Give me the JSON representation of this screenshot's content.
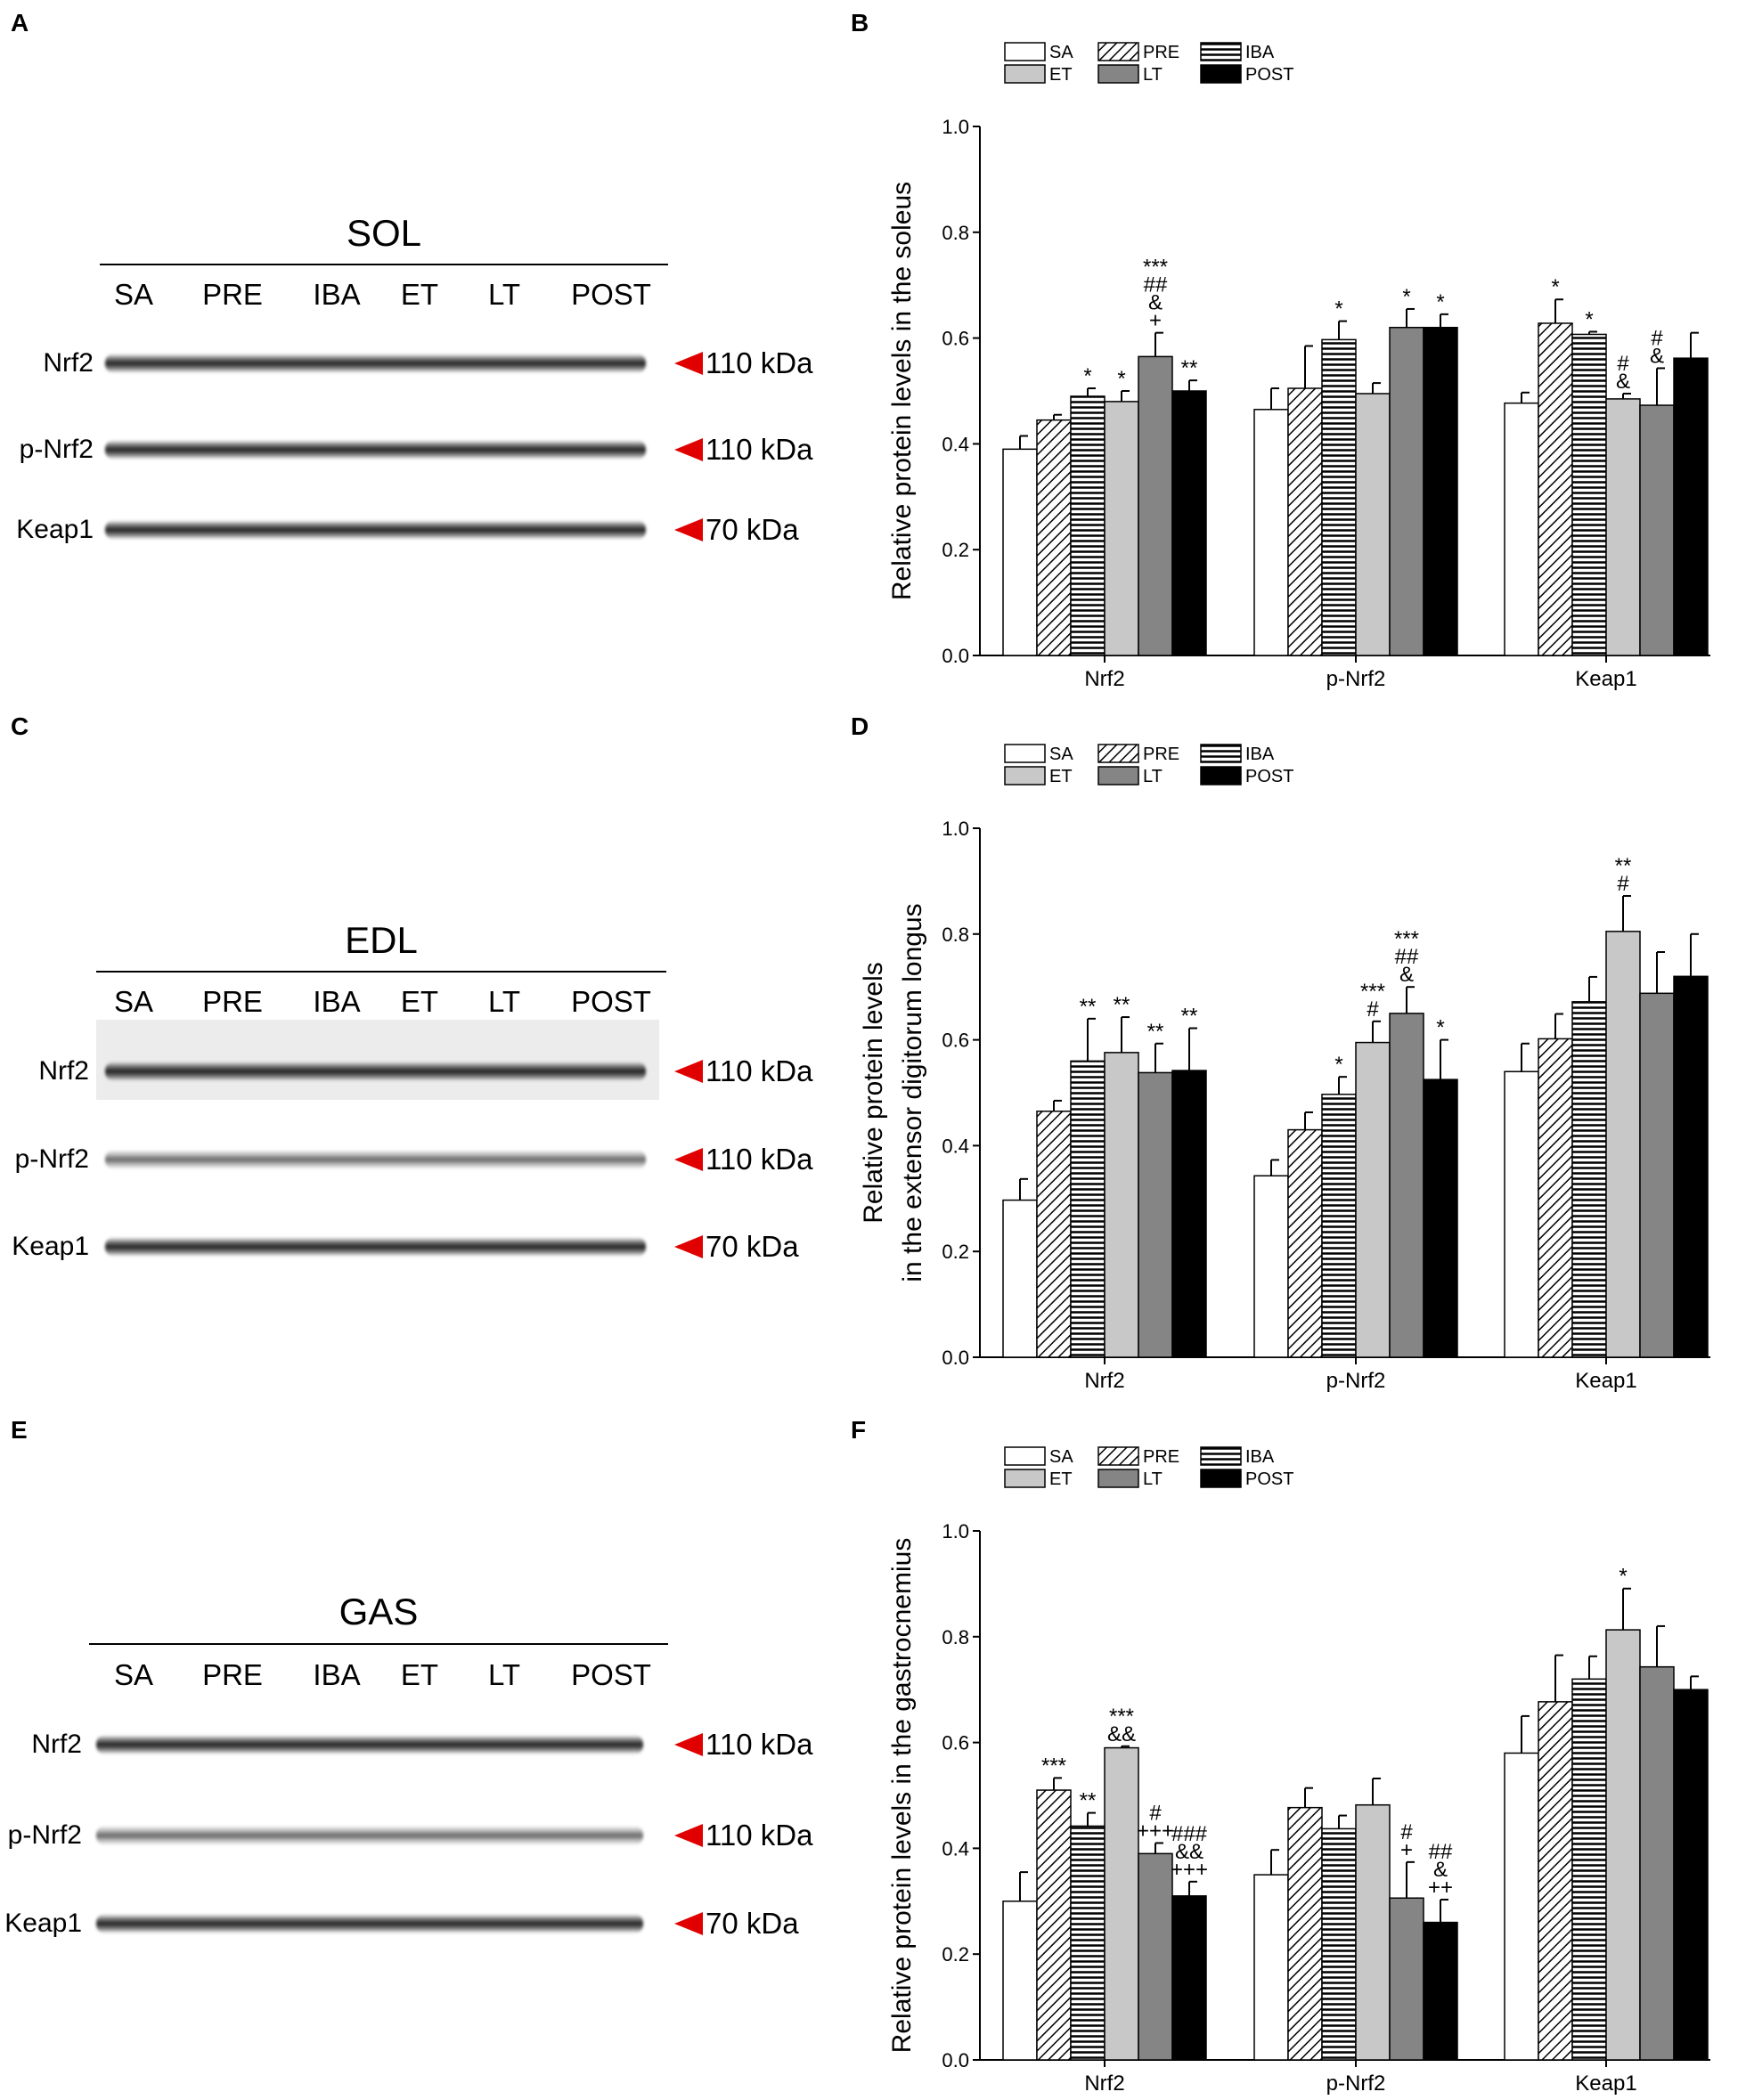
{
  "panels": {
    "A": "A",
    "B": "B",
    "C": "C",
    "D": "D",
    "E": "E",
    "F": "F"
  },
  "blots": [
    {
      "title": "SOL",
      "lanes": [
        "SA",
        "PRE",
        "IBA",
        "ET",
        "LT",
        "POST"
      ],
      "rows": [
        {
          "label": "Nrf2",
          "kda": "110 kDa"
        },
        {
          "label": "p-Nrf2",
          "kda": "110 kDa"
        },
        {
          "label": "Keap1",
          "kda": "70 kDa"
        }
      ]
    },
    {
      "title": "EDL",
      "lanes": [
        "SA",
        "PRE",
        "IBA",
        "ET",
        "LT",
        "POST"
      ],
      "rows": [
        {
          "label": "Nrf2",
          "kda": "110 kDa"
        },
        {
          "label": "p-Nrf2",
          "kda": "110 kDa"
        },
        {
          "label": "Keap1",
          "kda": "70 kDa"
        }
      ]
    },
    {
      "title": "GAS",
      "lanes": [
        "SA",
        "PRE",
        "IBA",
        "ET",
        "LT",
        "POST"
      ],
      "rows": [
        {
          "label": "Nrf2",
          "kda": "110 kDa"
        },
        {
          "label": "p-Nrf2",
          "kda": "110 kDa"
        },
        {
          "label": "Keap1",
          "kda": "70 kDa"
        }
      ]
    }
  ],
  "chart_data": [
    {
      "type": "bar",
      "panel": "B",
      "ylabel": [
        "Relative protein levels in the soleus"
      ],
      "ylim": [
        0,
        1.0
      ],
      "yticks": [
        "0.0",
        "0.2",
        "0.4",
        "0.6",
        "0.8",
        "1.0"
      ],
      "categories": [
        "Nrf2",
        "p-Nrf2",
        "Keap1"
      ],
      "legend": [
        "SA",
        "PRE",
        "IBA",
        "ET",
        "LT",
        "POST"
      ],
      "legend_position": "top",
      "series": [
        {
          "name": "SA",
          "values": [
            0.39,
            0.465,
            0.477
          ],
          "errors": [
            0.025,
            0.04,
            0.02
          ],
          "annotations": [
            "",
            "",
            ""
          ]
        },
        {
          "name": "PRE",
          "values": [
            0.445,
            0.505,
            0.628
          ],
          "errors": [
            0.01,
            0.08,
            0.045
          ],
          "annotations": [
            "",
            "",
            "*"
          ]
        },
        {
          "name": "IBA",
          "values": [
            0.49,
            0.597,
            0.607
          ],
          "errors": [
            0.015,
            0.035,
            0.005
          ],
          "annotations": [
            "*",
            "*",
            "*"
          ]
        },
        {
          "name": "ET",
          "values": [
            0.48,
            0.495,
            0.485
          ],
          "errors": [
            0.02,
            0.02,
            0.01
          ],
          "annotations": [
            "*",
            "",
            "#\n&"
          ]
        },
        {
          "name": "LT",
          "values": [
            0.565,
            0.62,
            0.473
          ],
          "errors": [
            0.045,
            0.035,
            0.07
          ],
          "annotations": [
            "***\n##\n&\n+",
            "*",
            "#\n&"
          ]
        },
        {
          "name": "POST",
          "values": [
            0.5,
            0.62,
            0.562
          ],
          "errors": [
            0.02,
            0.025,
            0.048
          ],
          "annotations": [
            "**",
            "*",
            ""
          ]
        }
      ]
    },
    {
      "type": "bar",
      "panel": "D",
      "ylabel": [
        "Relative protein levels",
        "in the extensor digitorum longus"
      ],
      "ylim": [
        0,
        1.0
      ],
      "yticks": [
        "0.0",
        "0.2",
        "0.4",
        "0.6",
        "0.8",
        "1.0"
      ],
      "categories": [
        "Nrf2",
        "p-Nrf2",
        "Keap1"
      ],
      "legend": [
        "SA",
        "PRE",
        "IBA",
        "ET",
        "LT",
        "POST"
      ],
      "legend_position": "top",
      "series": [
        {
          "name": "SA",
          "values": [
            0.297,
            0.343,
            0.54
          ],
          "errors": [
            0.04,
            0.03,
            0.053
          ],
          "annotations": [
            "",
            "",
            ""
          ]
        },
        {
          "name": "PRE",
          "values": [
            0.465,
            0.43,
            0.602
          ],
          "errors": [
            0.02,
            0.033,
            0.047
          ],
          "annotations": [
            "",
            "",
            ""
          ]
        },
        {
          "name": "IBA",
          "values": [
            0.56,
            0.497,
            0.672
          ],
          "errors": [
            0.08,
            0.033,
            0.047
          ],
          "annotations": [
            "**",
            "*",
            ""
          ]
        },
        {
          "name": "ET",
          "values": [
            0.576,
            0.595,
            0.805
          ],
          "errors": [
            0.067,
            0.04,
            0.067
          ],
          "annotations": [
            "**",
            "***\n#",
            "**\n#"
          ]
        },
        {
          "name": "LT",
          "values": [
            0.538,
            0.65,
            0.688
          ],
          "errors": [
            0.055,
            0.05,
            0.078
          ],
          "annotations": [
            "**",
            "***\n##\n&",
            ""
          ]
        },
        {
          "name": "POST",
          "values": [
            0.542,
            0.525,
            0.72
          ],
          "errors": [
            0.08,
            0.075,
            0.08
          ],
          "annotations": [
            "**",
            "*",
            ""
          ]
        }
      ]
    },
    {
      "type": "bar",
      "panel": "F",
      "ylabel": [
        "Relative protein levels in the gastrocnemius"
      ],
      "ylim": [
        0,
        1.0
      ],
      "yticks": [
        "0.0",
        "0.2",
        "0.4",
        "0.6",
        "0.8",
        "1.0"
      ],
      "categories": [
        "Nrf2",
        "p-Nrf2",
        "Keap1"
      ],
      "legend": [
        "SA",
        "PRE",
        "IBA",
        "ET",
        "LT",
        "POST"
      ],
      "legend_position": "top",
      "series": [
        {
          "name": "SA",
          "values": [
            0.3,
            0.35,
            0.58
          ],
          "errors": [
            0.055,
            0.047,
            0.07
          ],
          "annotations": [
            "",
            "",
            ""
          ]
        },
        {
          "name": "PRE",
          "values": [
            0.51,
            0.477,
            0.677
          ],
          "errors": [
            0.023,
            0.037,
            0.088
          ],
          "annotations": [
            "***",
            "",
            ""
          ]
        },
        {
          "name": "IBA",
          "values": [
            0.442,
            0.437,
            0.72
          ],
          "errors": [
            0.025,
            0.025,
            0.043
          ],
          "annotations": [
            "**",
            "",
            ""
          ]
        },
        {
          "name": "ET",
          "values": [
            0.59,
            0.482,
            0.813
          ],
          "errors": [
            0.003,
            0.05,
            0.078
          ],
          "annotations": [
            "***\n&&",
            "",
            "*"
          ]
        },
        {
          "name": "LT",
          "values": [
            0.39,
            0.306,
            0.743
          ],
          "errors": [
            0.02,
            0.068,
            0.077
          ],
          "annotations": [
            "#\n+++",
            "#\n+",
            ""
          ]
        },
        {
          "name": "POST",
          "values": [
            0.31,
            0.26,
            0.7
          ],
          "errors": [
            0.027,
            0.043,
            0.025
          ],
          "annotations": [
            "###\n&&\n+++",
            "##\n&\n++",
            ""
          ]
        }
      ]
    }
  ],
  "colors": {
    "SA": "#ffffff",
    "PRE": "hatch-diagonal",
    "IBA": "hatch-horizontal",
    "ET": "#c8c8c8",
    "LT": "#858585",
    "POST": "#000000",
    "arrow": "#e00000"
  }
}
